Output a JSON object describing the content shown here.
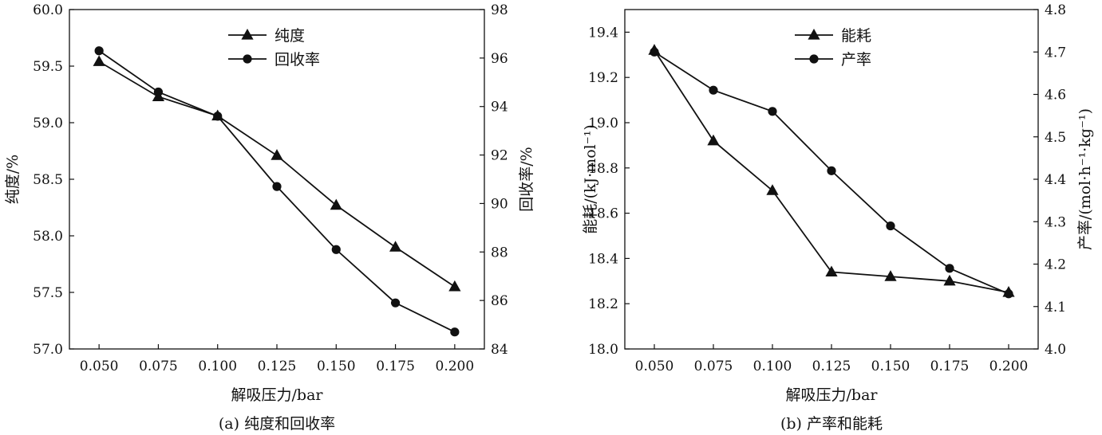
{
  "chart_data": [
    {
      "type": "line",
      "caption": "(a) 纯度和回收率",
      "xlabel": "解吸压力/bar",
      "ylabel_left": "纯度/%",
      "ylabel_right": "回收率/%",
      "x": [
        0.05,
        0.075,
        0.1,
        0.125,
        0.15,
        0.175,
        0.2
      ],
      "xtick_labels": [
        "0.050",
        "0.075",
        "0.100",
        "0.125",
        "0.150",
        "0.175",
        "0.200"
      ],
      "xlim": [
        0.0375,
        0.2125
      ],
      "ylim_left": [
        57.0,
        60.0
      ],
      "ylim_right": [
        84,
        98
      ],
      "yticks_left": [
        "57.0",
        "57.5",
        "58.0",
        "58.5",
        "59.0",
        "59.5",
        "60.0"
      ],
      "yticks_right": [
        "84",
        "86",
        "88",
        "90",
        "92",
        "94",
        "96",
        "98"
      ],
      "legend_position": "top-center",
      "series": [
        {
          "name": "纯度",
          "axis": "left",
          "marker": "triangle",
          "values": [
            59.54,
            59.23,
            59.06,
            58.71,
            58.27,
            57.9,
            57.55
          ]
        },
        {
          "name": "回收率",
          "axis": "right",
          "marker": "circle",
          "values": [
            96.3,
            94.6,
            93.6,
            90.7,
            88.1,
            85.9,
            84.7
          ]
        }
      ]
    },
    {
      "type": "line",
      "caption": "(b) 产率和能耗",
      "xlabel": "解吸压力/bar",
      "ylabel_left": "能耗/(kJ·mol⁻¹)",
      "ylabel_right": "产率/(mol·h⁻¹·kg⁻¹)",
      "x": [
        0.05,
        0.075,
        0.1,
        0.125,
        0.15,
        0.175,
        0.2
      ],
      "xtick_labels": [
        "0.050",
        "0.075",
        "0.100",
        "0.125",
        "0.150",
        "0.175",
        "0.200"
      ],
      "xlim": [
        0.0375,
        0.2125
      ],
      "ylim_left": [
        18.0,
        19.5
      ],
      "ylim_right": [
        4.0,
        4.8
      ],
      "yticks_left": [
        "18.0",
        "18.2",
        "18.4",
        "18.6",
        "18.8",
        "19.0",
        "19.2",
        "19.4"
      ],
      "yticks_right": [
        "4.0",
        "4.1",
        "4.2",
        "4.3",
        "4.4",
        "4.5",
        "4.6",
        "4.7",
        "4.8"
      ],
      "legend_position": "top-center",
      "series": [
        {
          "name": "能耗",
          "axis": "left",
          "marker": "triangle",
          "values": [
            19.32,
            18.92,
            18.7,
            18.34,
            18.32,
            18.3,
            18.25
          ]
        },
        {
          "name": "产率",
          "axis": "right",
          "marker": "circle",
          "values": [
            4.7,
            4.61,
            4.56,
            4.42,
            4.29,
            4.19,
            4.13
          ]
        }
      ]
    }
  ]
}
